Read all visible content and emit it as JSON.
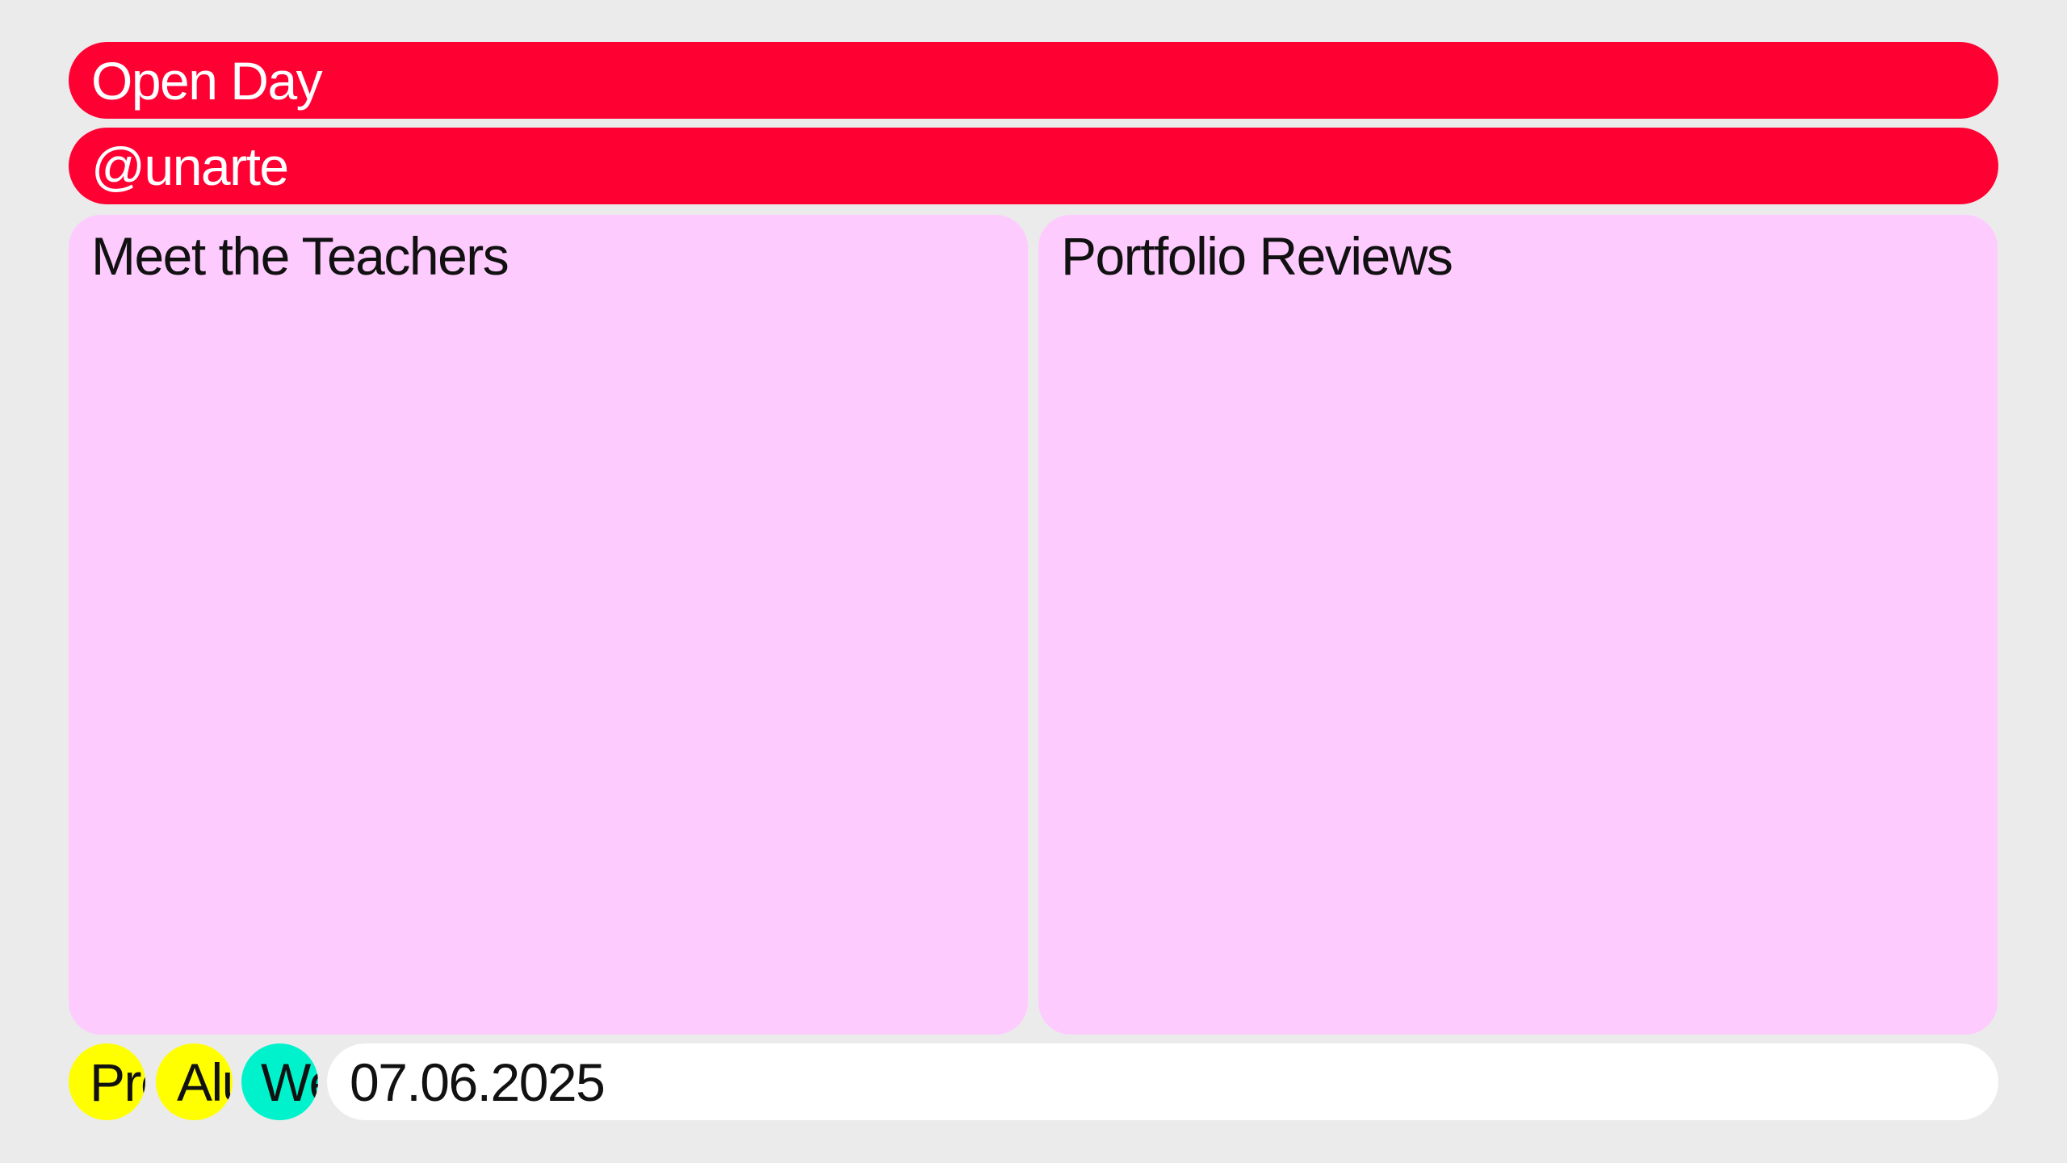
{
  "header": {
    "title": "Open Day",
    "handle": "@unarte"
  },
  "panels": [
    {
      "title": "Meet the Teachers"
    },
    {
      "title": "Portfolio Reviews"
    }
  ],
  "footer": {
    "chips": [
      {
        "label": "Pre",
        "color": "#ffff00"
      },
      {
        "label": "Alu",
        "color": "#ffff00"
      },
      {
        "label": "We",
        "color": "#00f2cc"
      }
    ],
    "date": "07.06.2025"
  },
  "colors": {
    "background": "#ebebeb",
    "accent_red": "#ff0033",
    "panel_pink": "#fecbfe",
    "chip_yellow": "#ffff00",
    "chip_teal": "#00f2cc"
  }
}
